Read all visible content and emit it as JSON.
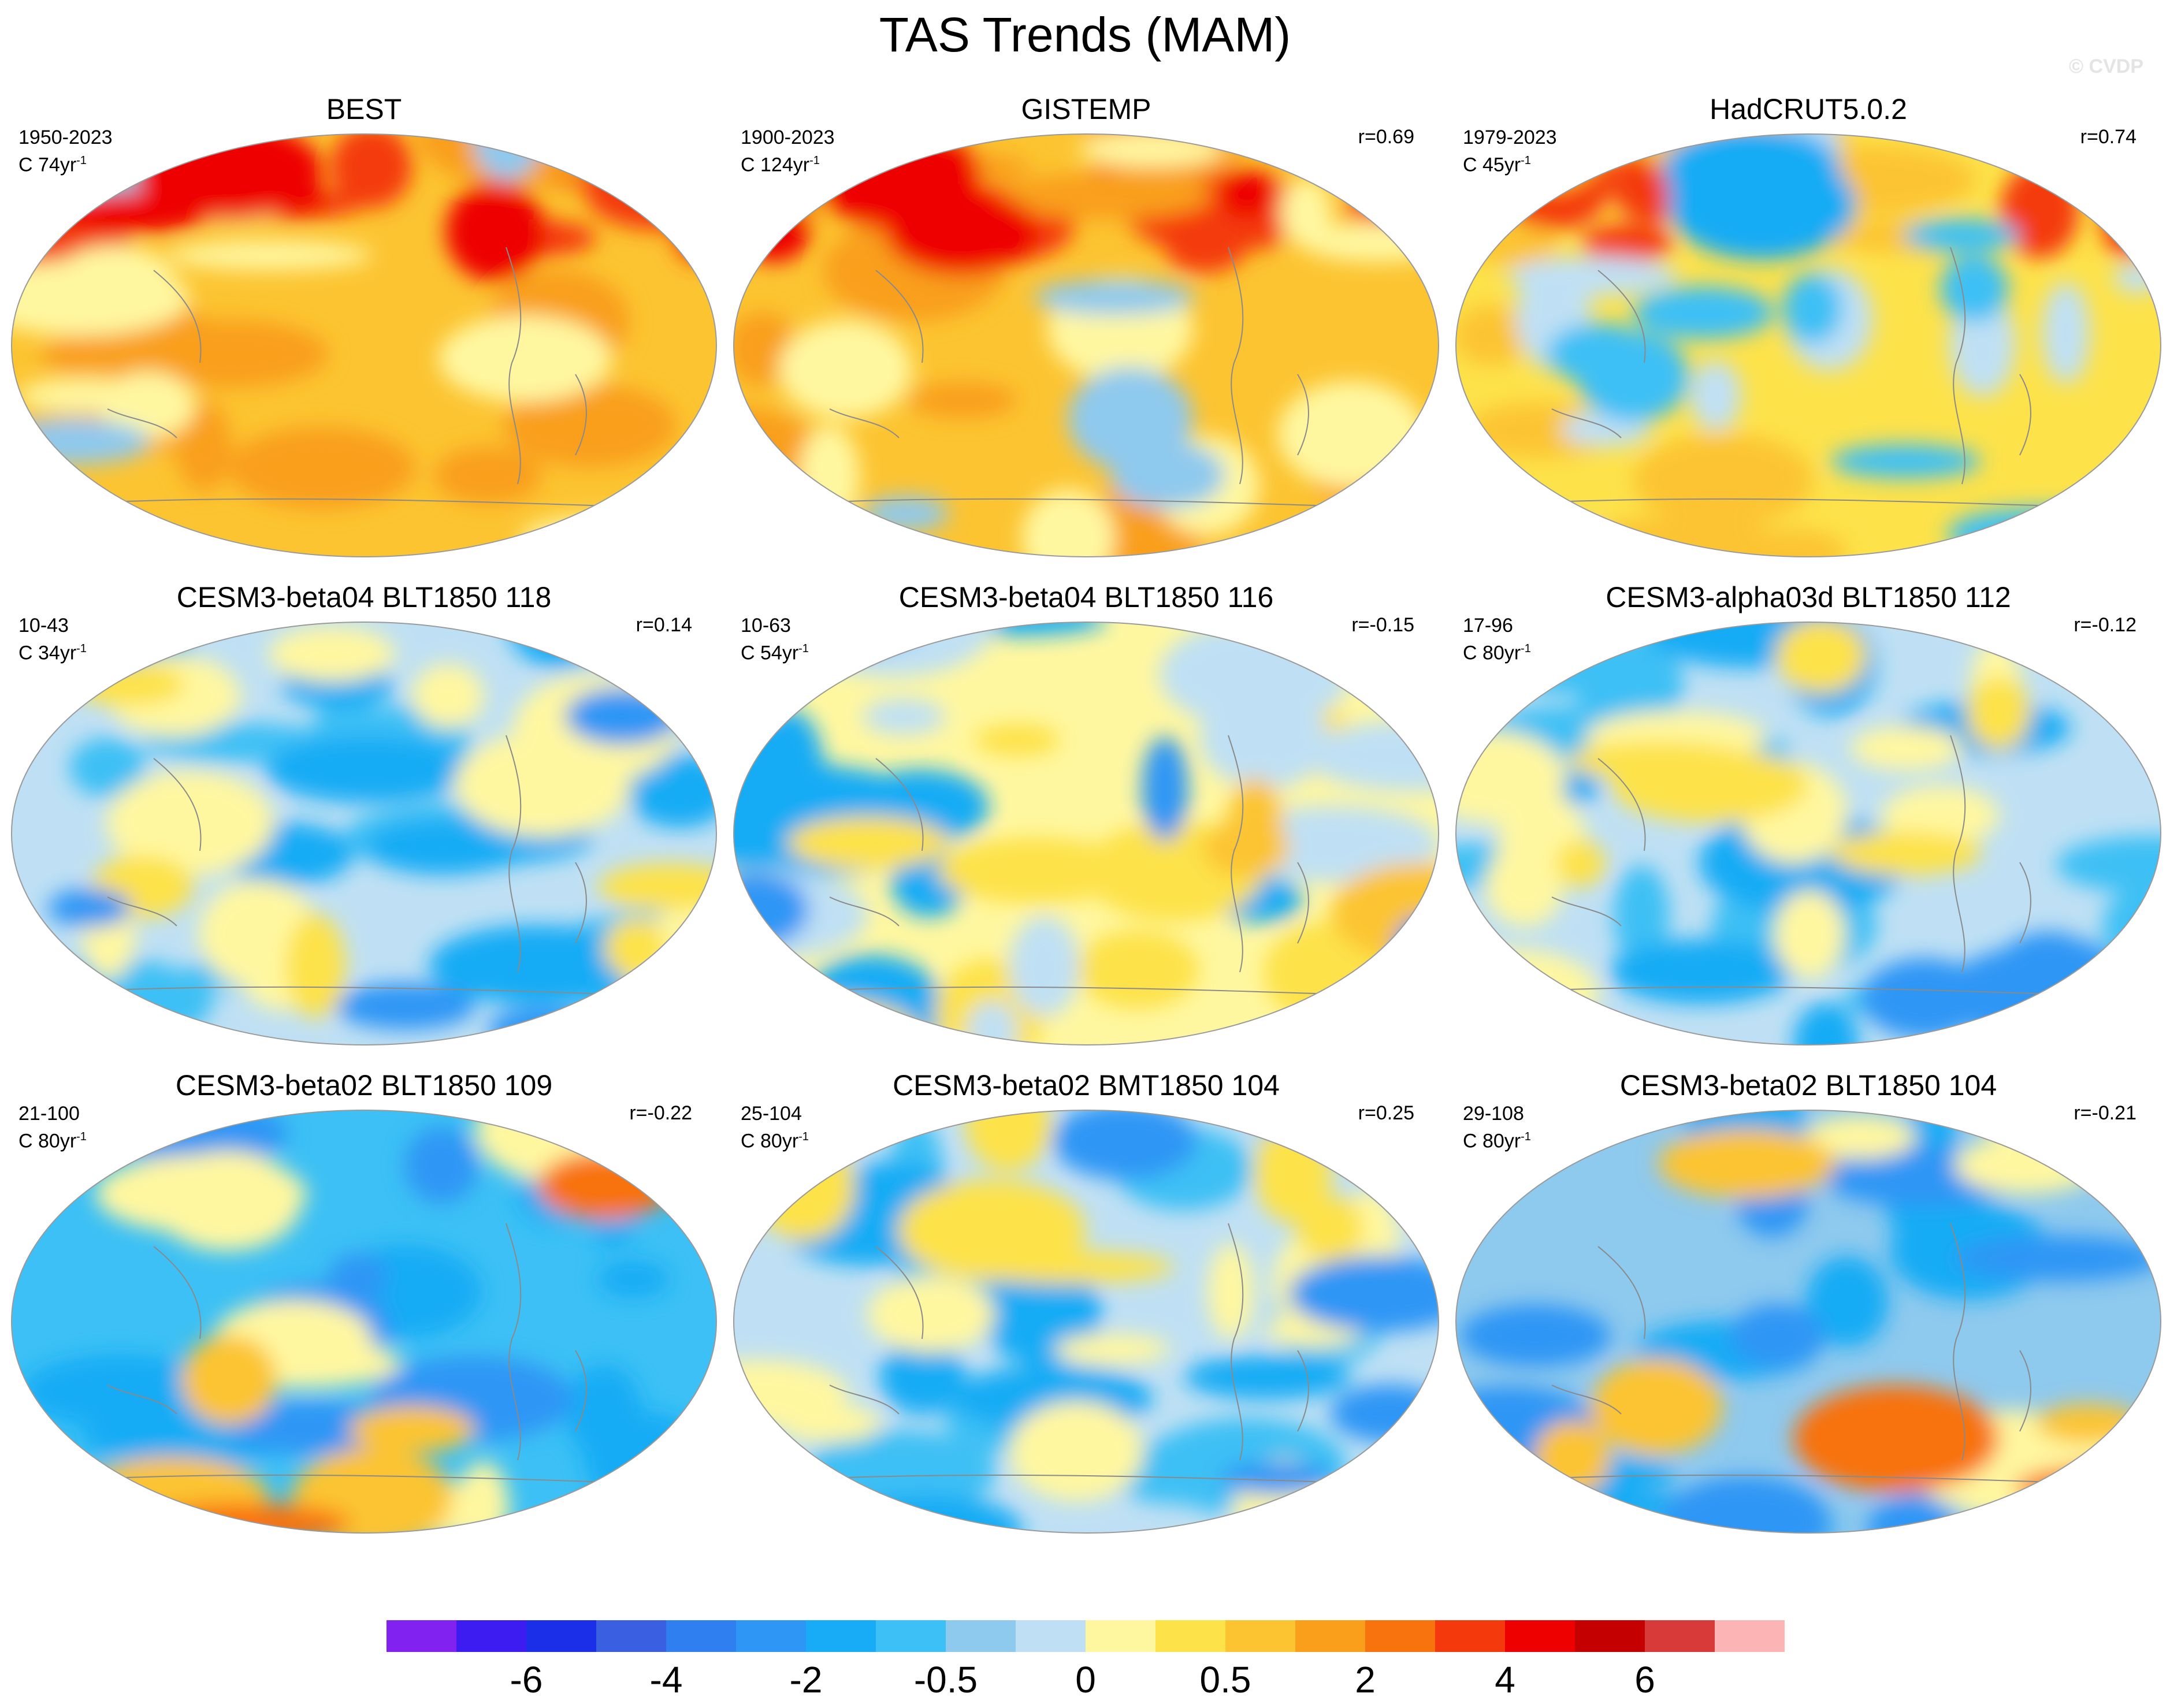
{
  "title": "TAS Trends (MAM)",
  "watermark": "© CVDP",
  "chart_data": {
    "type": "heatmap",
    "projection": "global map",
    "variable": "TAS",
    "season": "MAM",
    "panels": [
      {
        "title": "BEST",
        "period": "1950-2023",
        "count": "C 74yr",
        "count_sup": "-1",
        "corr": "",
        "tone": "warm-strong",
        "dominant_level": 1.5
      },
      {
        "title": "GISTEMP",
        "period": "1900-2023",
        "count": "C 124yr",
        "count_sup": "-1",
        "corr": "r=0.69",
        "tone": "warm-strong",
        "dominant_level": 1.5
      },
      {
        "title": "HadCRUT5.0.2",
        "period": "1979-2023",
        "count": "C 45yr",
        "count_sup": "-1",
        "corr": "r=0.74",
        "tone": "warm",
        "dominant_level": 1.0
      },
      {
        "title": "CESM3-beta04 BLT1850 118",
        "period": "10-43",
        "count": "C 34yr",
        "count_sup": "-1",
        "corr": "r=0.14",
        "tone": "mixed",
        "dominant_level": 0.25
      },
      {
        "title": "CESM3-beta04 BLT1850 116",
        "period": "10-63",
        "count": "C 54yr",
        "count_sup": "-1",
        "corr": "r=-0.15",
        "tone": "mixed-warm",
        "dominant_level": 0.5
      },
      {
        "title": "CESM3-alpha03d BLT1850 112",
        "period": "17-96",
        "count": "C 80yr",
        "count_sup": "-1",
        "corr": "r=-0.12",
        "tone": "mixed",
        "dominant_level": 0.25
      },
      {
        "title": "CESM3-beta02 BLT1850 109",
        "period": "21-100",
        "count": "C 80yr",
        "count_sup": "-1",
        "corr": "r=-0.22",
        "tone": "mixed-cool",
        "dominant_level": -0.25
      },
      {
        "title": "CESM3-beta02 BMT1850 104",
        "period": "25-104",
        "count": "C 80yr",
        "count_sup": "-1",
        "corr": "r=0.25",
        "tone": "mixed",
        "dominant_level": 0.25
      },
      {
        "title": "CESM3-beta02 BLT1850 104",
        "period": "29-108",
        "count": "C 80yr",
        "count_sup": "-1",
        "corr": "r=-0.21",
        "tone": "mixed-cool",
        "dominant_level": 0.0
      }
    ],
    "colorbar": {
      "colors": [
        "#8122f0",
        "#3c1cf0",
        "#1b2ee8",
        "#3a5fe0",
        "#2f7ff0",
        "#2e96f5",
        "#17acf5",
        "#3cc0f5",
        "#8ec9ee",
        "#bfe0f4",
        "#fff7a0",
        "#fde24a",
        "#fcc431",
        "#f99f1b",
        "#f8720e",
        "#f43a0c",
        "#ee0000",
        "#c40000",
        "#d83a3a",
        "#fdb4b4"
      ],
      "tick_labels": [
        "-6",
        "-4",
        "-2",
        "-0.5",
        "0",
        "0.5",
        "2",
        "4",
        "6"
      ],
      "tick_after_box": [
        2,
        4,
        6,
        8,
        10,
        12,
        14,
        16,
        18
      ]
    }
  }
}
